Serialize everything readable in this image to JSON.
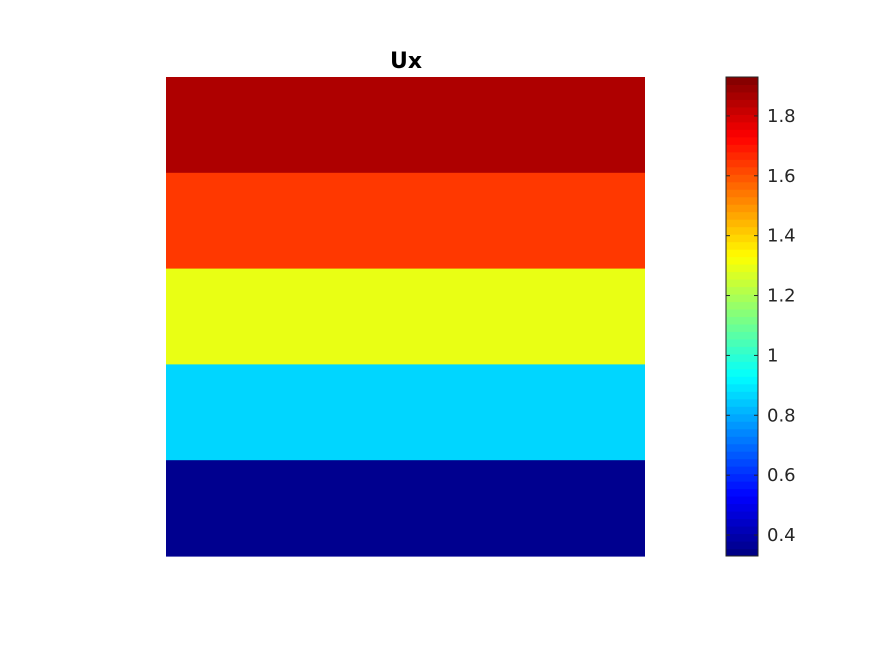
{
  "chart_data": {
    "type": "heatmap",
    "title": "Ux",
    "xlabel": "",
    "ylabel": "",
    "axes_visible": false,
    "grid": false,
    "colormap": "jet",
    "bands": [
      {
        "value": 1.93,
        "color": "#AE0000"
      },
      {
        "value": 1.68,
        "color": "#FF3800"
      },
      {
        "value": 1.38,
        "color": "#E9FF14"
      },
      {
        "value": 0.95,
        "color": "#00D6FF"
      },
      {
        "value": 0.33,
        "color": "#00008F"
      }
    ],
    "colorbar": {
      "position": "right",
      "clim": [
        0.33,
        1.93
      ],
      "levels": 64,
      "ticks": [
        0.4,
        0.6,
        0.8,
        1,
        1.2,
        1.4,
        1.6,
        1.8
      ],
      "tick_labels": [
        "0.4",
        "0.6",
        "0.8",
        "1",
        "1.2",
        "1.4",
        "1.6",
        "1.8"
      ]
    }
  }
}
